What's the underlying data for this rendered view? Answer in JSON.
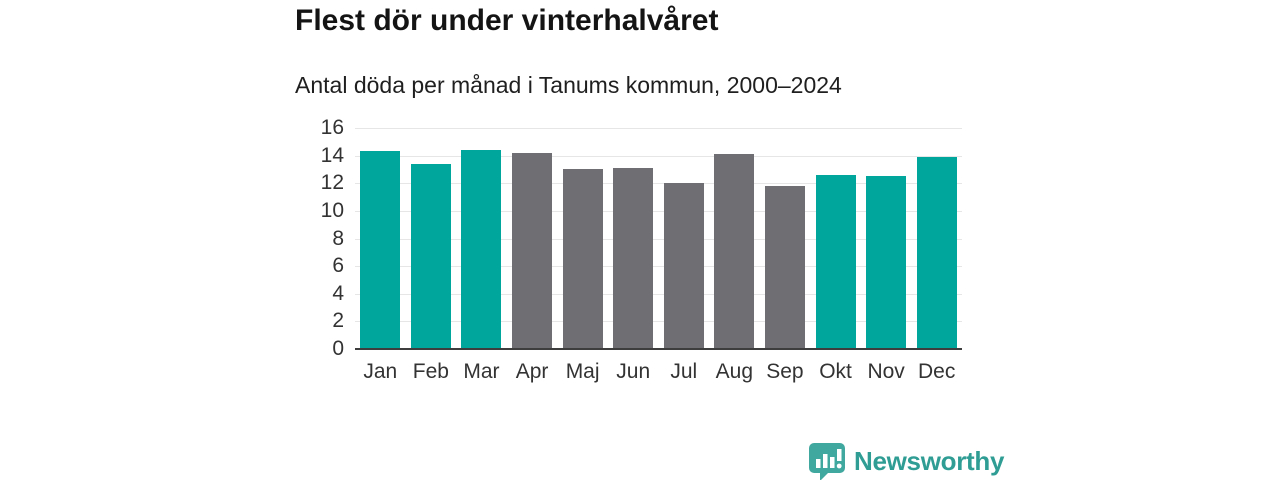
{
  "title": "Flest dör under vinterhalvåret",
  "subtitle": "Antal döda per månad i Tanums kommun, 2000–2024",
  "logo": {
    "text": "Newsworthy"
  },
  "colors": {
    "winter_bar": "#00a69b",
    "summer_bar": "#6e6e73",
    "gridline": "#e6e6e6",
    "axis_line": "#3d3d3d",
    "logo_teal": "#2f9d94",
    "logo_bubble": "#41a89f"
  },
  "chart_data": {
    "type": "bar",
    "title": "Flest dör under vinterhalvåret",
    "subtitle": "Antal döda per månad i Tanums kommun, 2000–2024",
    "categories": [
      "Jan",
      "Feb",
      "Mar",
      "Apr",
      "Maj",
      "Jun",
      "Jul",
      "Aug",
      "Sep",
      "Okt",
      "Nov",
      "Dec"
    ],
    "values": [
      14.3,
      13.4,
      14.4,
      14.2,
      13.0,
      13.1,
      12.0,
      14.1,
      11.8,
      12.6,
      12.5,
      13.9
    ],
    "bar_colors": [
      "#00a69b",
      "#00a69b",
      "#00a69b",
      "#6e6e73",
      "#6e6e73",
      "#6e6e73",
      "#6e6e73",
      "#6e6e73",
      "#6e6e73",
      "#00a69b",
      "#00a69b",
      "#00a69b"
    ],
    "xlabel": "",
    "ylabel": "",
    "ylim": [
      0,
      16
    ],
    "yticks": [
      0,
      2,
      4,
      6,
      8,
      10,
      12,
      14,
      16
    ],
    "grid": true,
    "legend": false
  }
}
